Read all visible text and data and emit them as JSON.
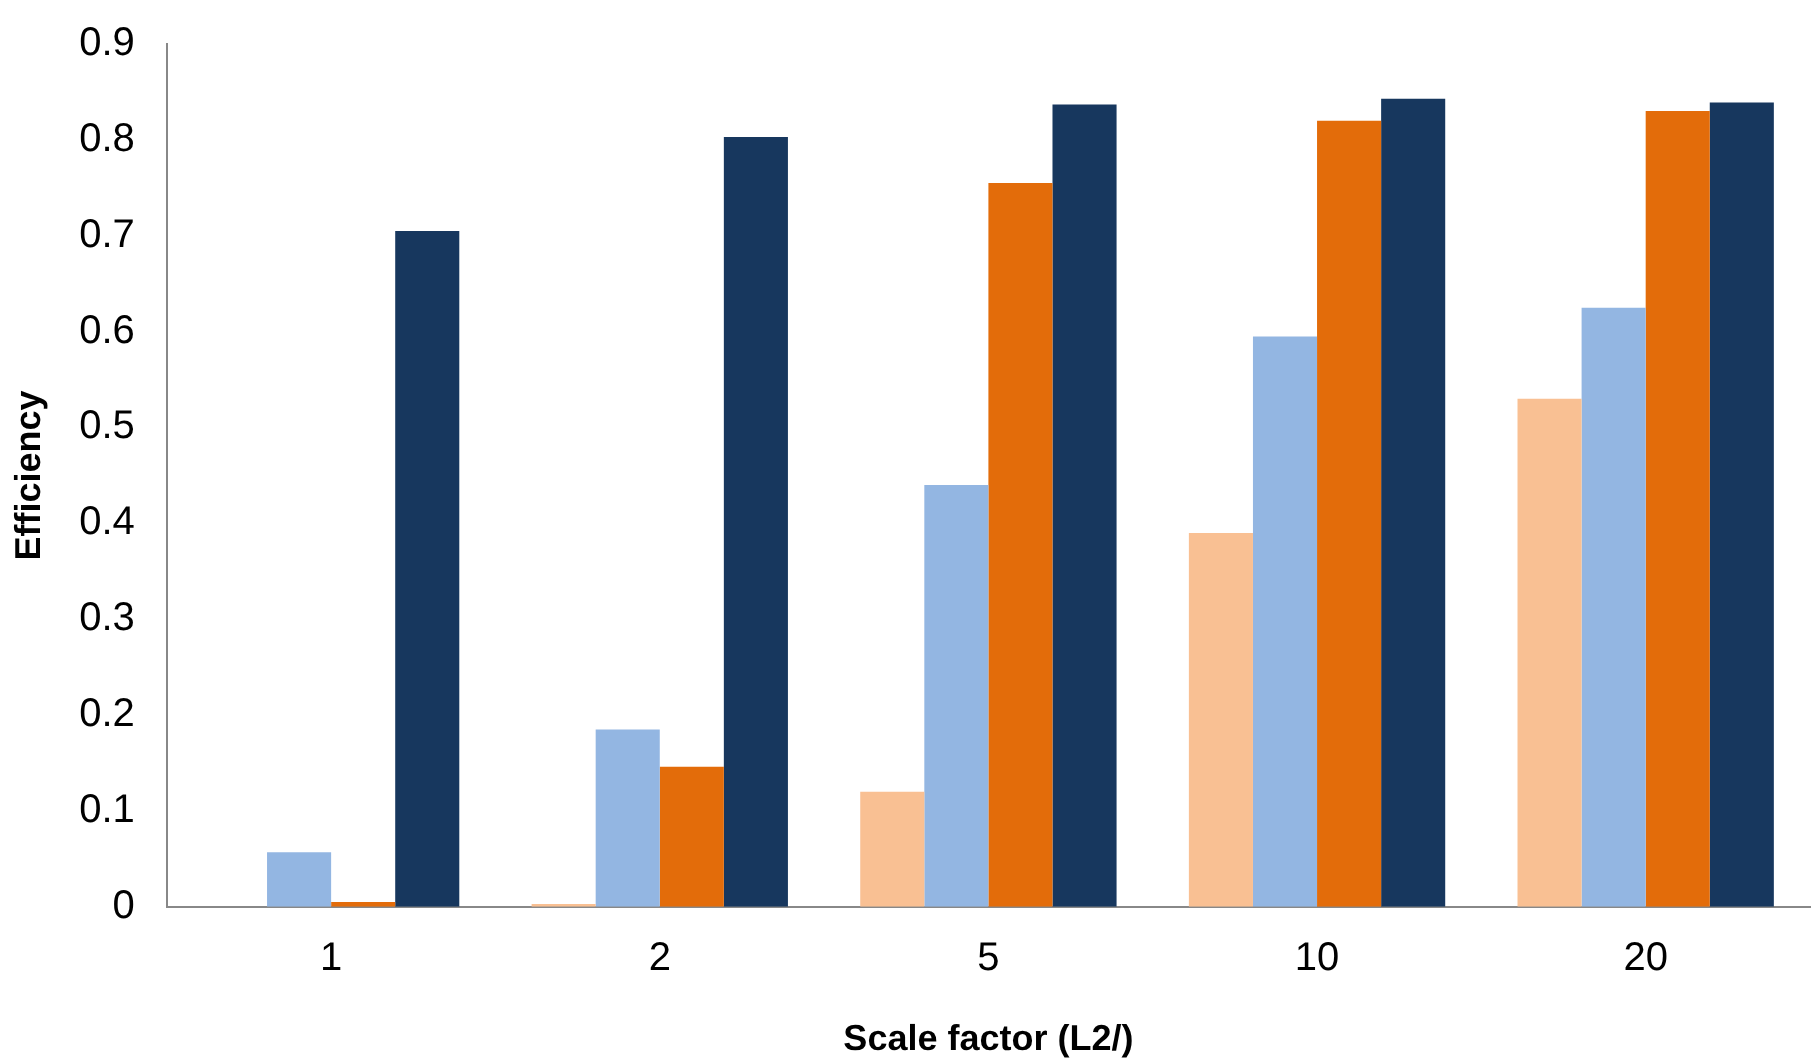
{
  "chart_data": {
    "type": "bar",
    "xlabel": "Scale factor (L2/)",
    "ylabel": "Efficiency",
    "categories": [
      "1",
      "2",
      "5",
      "10",
      "20"
    ],
    "series": [
      {
        "color": "#f9c093",
        "values": [
          0,
          0.003,
          0.12,
          0.39,
          0.53
        ]
      },
      {
        "color": "#93b6e2",
        "values": [
          0.057,
          0.185,
          0.44,
          0.595,
          0.625
        ]
      },
      {
        "color": "#e36c0a",
        "values": [
          0.005,
          0.146,
          0.755,
          0.82,
          0.83
        ]
      },
      {
        "color": "#17375e",
        "values": [
          0.705,
          0.803,
          0.837,
          0.843,
          0.839
        ]
      }
    ],
    "ylim": [
      0,
      0.9
    ],
    "yticks": [
      0,
      0.1,
      0.2,
      0.3,
      0.4,
      0.5,
      0.6,
      0.7,
      0.8,
      0.9
    ],
    "grid": false,
    "legend": false
  }
}
